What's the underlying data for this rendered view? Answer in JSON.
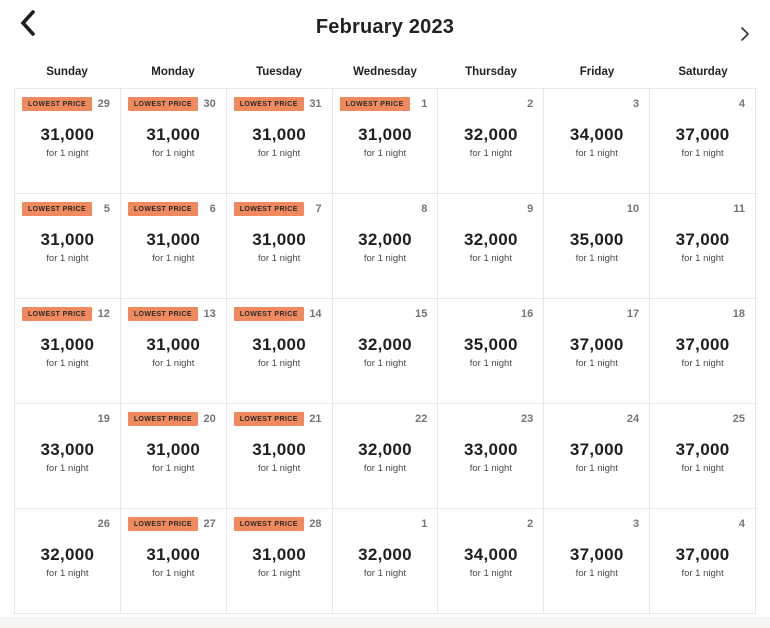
{
  "header": {
    "title": "February 2023",
    "prev_label": "previous month",
    "next_label": "next month"
  },
  "weekdays": [
    "Sunday",
    "Monday",
    "Tuesday",
    "Wednesday",
    "Thursday",
    "Friday",
    "Saturday"
  ],
  "badge_label": "LOWEST PRICE",
  "unit_label": "for 1 night",
  "colors": {
    "badge_bg": "#f0895d",
    "badge_text": "#2b2b2b",
    "price_text": "#1f1f1f",
    "day_number": "#757575",
    "unit_text": "#4a4a4a",
    "grid_border": "#e8e8e8",
    "footer_strip": "#f7f5f4"
  },
  "weeks": [
    [
      {
        "day": "29",
        "price": "31,000",
        "lowest": true
      },
      {
        "day": "30",
        "price": "31,000",
        "lowest": true
      },
      {
        "day": "31",
        "price": "31,000",
        "lowest": true
      },
      {
        "day": "1",
        "price": "31,000",
        "lowest": true
      },
      {
        "day": "2",
        "price": "32,000",
        "lowest": false
      },
      {
        "day": "3",
        "price": "34,000",
        "lowest": false
      },
      {
        "day": "4",
        "price": "37,000",
        "lowest": false
      }
    ],
    [
      {
        "day": "5",
        "price": "31,000",
        "lowest": true
      },
      {
        "day": "6",
        "price": "31,000",
        "lowest": true
      },
      {
        "day": "7",
        "price": "31,000",
        "lowest": true
      },
      {
        "day": "8",
        "price": "32,000",
        "lowest": false
      },
      {
        "day": "9",
        "price": "32,000",
        "lowest": false
      },
      {
        "day": "10",
        "price": "35,000",
        "lowest": false
      },
      {
        "day": "11",
        "price": "37,000",
        "lowest": false
      }
    ],
    [
      {
        "day": "12",
        "price": "31,000",
        "lowest": true
      },
      {
        "day": "13",
        "price": "31,000",
        "lowest": true
      },
      {
        "day": "14",
        "price": "31,000",
        "lowest": true
      },
      {
        "day": "15",
        "price": "32,000",
        "lowest": false
      },
      {
        "day": "16",
        "price": "35,000",
        "lowest": false
      },
      {
        "day": "17",
        "price": "37,000",
        "lowest": false
      },
      {
        "day": "18",
        "price": "37,000",
        "lowest": false
      }
    ],
    [
      {
        "day": "19",
        "price": "33,000",
        "lowest": false
      },
      {
        "day": "20",
        "price": "31,000",
        "lowest": true
      },
      {
        "day": "21",
        "price": "31,000",
        "lowest": true
      },
      {
        "day": "22",
        "price": "32,000",
        "lowest": false
      },
      {
        "day": "23",
        "price": "33,000",
        "lowest": false
      },
      {
        "day": "24",
        "price": "37,000",
        "lowest": false
      },
      {
        "day": "25",
        "price": "37,000",
        "lowest": false
      }
    ],
    [
      {
        "day": "26",
        "price": "32,000",
        "lowest": false
      },
      {
        "day": "27",
        "price": "31,000",
        "lowest": true
      },
      {
        "day": "28",
        "price": "31,000",
        "lowest": true
      },
      {
        "day": "1",
        "price": "32,000",
        "lowest": false
      },
      {
        "day": "2",
        "price": "34,000",
        "lowest": false
      },
      {
        "day": "3",
        "price": "37,000",
        "lowest": false
      },
      {
        "day": "4",
        "price": "37,000",
        "lowest": false
      }
    ]
  ]
}
